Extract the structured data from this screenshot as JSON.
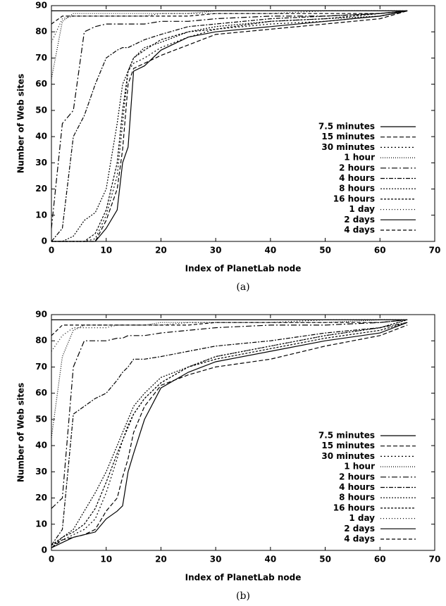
{
  "chart_data": [
    {
      "type": "line",
      "caption": "(a)",
      "xlabel": "Index of PlanetLab node",
      "ylabel": "Number of Web sites",
      "xlim": [
        0,
        70
      ],
      "ylim": [
        0,
        90
      ],
      "xticks": [
        0,
        10,
        20,
        30,
        40,
        50,
        60,
        70
      ],
      "yticks": [
        0,
        10,
        20,
        30,
        40,
        50,
        60,
        70,
        80,
        90
      ],
      "legend": "lower right",
      "x": [
        0,
        2,
        4,
        6,
        8,
        10,
        12,
        13,
        14,
        15,
        17,
        20,
        25,
        30,
        40,
        50,
        60,
        65
      ],
      "series": [
        {
          "name": "7.5 minutes",
          "color": "#000000",
          "dash": "none",
          "values": [
            0,
            0,
            0,
            0,
            0,
            5,
            12,
            30,
            36,
            65,
            67,
            73,
            78,
            80,
            82,
            84,
            86,
            88
          ]
        },
        {
          "name": "15 minutes",
          "color": "#000000",
          "dash": "6,3",
          "values": [
            0,
            0,
            0,
            0,
            0,
            8,
            20,
            35,
            60,
            66,
            68,
            71,
            75,
            79,
            81,
            83,
            85,
            88
          ]
        },
        {
          "name": "30 minutes",
          "color": "#000000",
          "dash": "2,3",
          "values": [
            0,
            0,
            0,
            0,
            1,
            10,
            25,
            45,
            65,
            68,
            70,
            74,
            78,
            81,
            83,
            84,
            86,
            88
          ]
        },
        {
          "name": "1 hour",
          "color": "#000000",
          "dash": "1,2",
          "values": [
            62,
            84,
            87,
            87,
            87,
            87,
            87,
            87,
            87,
            87,
            87,
            87,
            87,
            88,
            88,
            88,
            88,
            88
          ]
        },
        {
          "name": "2 hours",
          "color": "#000000",
          "dash": "8,3,2,3",
          "values": [
            5,
            45,
            50,
            80,
            82,
            83,
            83,
            83,
            83,
            83,
            83,
            84,
            84,
            85,
            86,
            86,
            87,
            88
          ]
        },
        {
          "name": "4 hours",
          "color": "#000000",
          "dash": "6,2,2,2",
          "values": [
            0,
            5,
            40,
            48,
            60,
            70,
            73,
            74,
            74,
            75,
            77,
            79,
            82,
            83,
            85,
            86,
            87,
            88
          ]
        },
        {
          "name": "8 hours",
          "color": "#000000",
          "dash": "2,2",
          "values": [
            0,
            0,
            2,
            8,
            11,
            20,
            45,
            60,
            65,
            70,
            74,
            76,
            80,
            82,
            84,
            85,
            86,
            88
          ]
        },
        {
          "name": "16 hours",
          "color": "#000000",
          "dash": "3,2",
          "values": [
            0,
            0,
            0,
            0,
            3,
            12,
            30,
            50,
            65,
            70,
            73,
            77,
            80,
            81,
            84,
            85,
            87,
            88
          ]
        },
        {
          "name": "1 day",
          "color": "#000000",
          "dash": "1,3",
          "values": [
            76,
            85,
            86,
            86,
            86,
            86,
            86,
            86,
            86,
            86,
            86,
            87,
            87,
            87,
            87,
            88,
            88,
            88
          ]
        },
        {
          "name": "2 days",
          "color": "#000000",
          "dash": "none",
          "values": [
            88,
            88,
            88,
            88,
            88,
            88,
            88,
            88,
            88,
            88,
            88,
            88,
            88,
            88,
            88,
            88,
            88,
            88
          ]
        },
        {
          "name": "4 days",
          "color": "#000000",
          "dash": "5,3",
          "values": [
            83,
            86,
            86,
            86,
            86,
            86,
            86,
            86,
            86,
            86,
            86,
            86,
            86,
            87,
            87,
            87,
            87,
            88
          ]
        }
      ]
    },
    {
      "type": "line",
      "caption": "(b)",
      "xlabel": "Index of PlanetLab node",
      "ylabel": "Number of Web sites",
      "xlim": [
        0,
        70
      ],
      "ylim": [
        0,
        90
      ],
      "xticks": [
        0,
        10,
        20,
        30,
        40,
        50,
        60,
        70
      ],
      "yticks": [
        0,
        10,
        20,
        30,
        40,
        50,
        60,
        70,
        80,
        90
      ],
      "legend": "lower right",
      "x": [
        0,
        2,
        4,
        6,
        8,
        10,
        12,
        13,
        14,
        15,
        17,
        20,
        25,
        30,
        40,
        50,
        60,
        65
      ],
      "series": [
        {
          "name": "7.5 minutes",
          "color": "#000000",
          "dash": "none",
          "values": [
            1,
            3,
            5,
            6,
            7,
            12,
            15,
            17,
            30,
            37,
            50,
            62,
            68,
            72,
            76,
            80,
            83,
            87
          ]
        },
        {
          "name": "15 minutes",
          "color": "#000000",
          "dash": "6,3",
          "values": [
            1,
            4,
            5,
            6,
            8,
            15,
            20,
            28,
            35,
            45,
            55,
            63,
            67,
            70,
            73,
            78,
            82,
            86
          ]
        },
        {
          "name": "30 minutes",
          "color": "#000000",
          "dash": "2,3",
          "values": [
            2,
            4,
            6,
            8,
            12,
            22,
            35,
            42,
            48,
            52,
            58,
            64,
            70,
            74,
            78,
            82,
            85,
            88
          ]
        },
        {
          "name": "1 hour",
          "color": "#000000",
          "dash": "1,2",
          "values": [
            43,
            74,
            84,
            86,
            86,
            86,
            86,
            86,
            86,
            86,
            86,
            87,
            87,
            87,
            87,
            87,
            88,
            88
          ]
        },
        {
          "name": "2 hours",
          "color": "#000000",
          "dash": "8,3,2,3",
          "values": [
            16,
            20,
            70,
            80,
            80,
            80,
            81,
            81,
            82,
            82,
            82,
            83,
            84,
            85,
            86,
            86,
            87,
            88
          ]
        },
        {
          "name": "4 hours",
          "color": "#000000",
          "dash": "6,2,2,2",
          "values": [
            2,
            8,
            52,
            55,
            58,
            60,
            65,
            68,
            70,
            73,
            73,
            74,
            76,
            78,
            80,
            83,
            85,
            87
          ]
        },
        {
          "name": "8 hours",
          "color": "#000000",
          "dash": "2,2",
          "values": [
            1,
            5,
            8,
            15,
            22,
            30,
            40,
            45,
            50,
            55,
            60,
            66,
            70,
            74,
            78,
            82,
            85,
            88
          ]
        },
        {
          "name": "16 hours",
          "color": "#000000",
          "dash": "3,2",
          "values": [
            2,
            5,
            7,
            10,
            16,
            26,
            37,
            42,
            47,
            52,
            58,
            64,
            70,
            73,
            77,
            81,
            84,
            87
          ]
        },
        {
          "name": "1 day",
          "color": "#000000",
          "dash": "1,3",
          "values": [
            76,
            82,
            85,
            85,
            85,
            85,
            86,
            86,
            86,
            86,
            86,
            86,
            87,
            87,
            87,
            88,
            88,
            88
          ]
        },
        {
          "name": "2 days",
          "color": "#000000",
          "dash": "none",
          "values": [
            88,
            88,
            88,
            88,
            88,
            88,
            88,
            88,
            88,
            88,
            88,
            88,
            88,
            88,
            88,
            88,
            88,
            88
          ]
        },
        {
          "name": "4 days",
          "color": "#000000",
          "dash": "5,3",
          "values": [
            82,
            86,
            86,
            86,
            86,
            86,
            86,
            86,
            86,
            86,
            86,
            86,
            86,
            87,
            87,
            87,
            87,
            88
          ]
        }
      ]
    }
  ]
}
